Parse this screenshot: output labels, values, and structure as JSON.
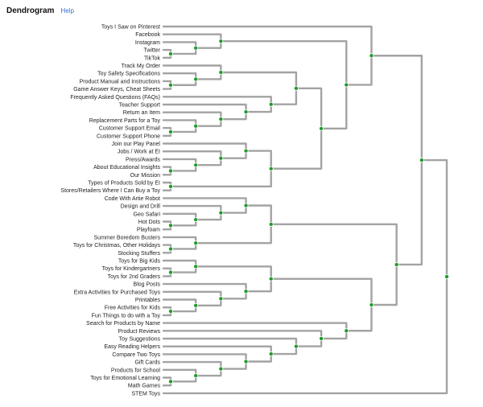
{
  "header": {
    "title": "Dendrogram",
    "help_label": "Help"
  },
  "colors": {
    "link": "#a3a3a3",
    "node": "#1f9b2a",
    "help_link": "#2f6fd6"
  },
  "chart_data": {
    "type": "dendrogram",
    "orientation": "leaves-left",
    "leaves": [
      "Toys I Saw on Pinterest",
      "Facebook",
      "Instagram",
      "Twitter",
      "TikTok",
      "Track My Order",
      "Toy Safety Specifications",
      "Product Manual and Instructions",
      "Game Answer Keys, Cheat Sheets",
      "Frequently Asked Questions (FAQs)",
      "Teacher Support",
      "Return an Item",
      "Replacement Parts for a Toy",
      "Customer Support Email",
      "Customer Support Phone",
      "Join our Play Panel",
      "Jobs / Work at EI",
      "Press/Awards",
      "About Educational Insights",
      "Our Mission",
      "Types of Products Sold by EI",
      "Stores/Retailers Where I Can Buy a Toy",
      "Code With Artie Robot",
      "Design and Drill",
      "Geo Safari",
      "Hot Dots",
      "Playfoam",
      "Summer Boredom Busters",
      "Toys for Christmas, Other Holidays",
      "Stocking Stuffers",
      "Toys for Big Kids",
      "Toys for Kindergartners",
      "Toys for 2nd Graders",
      "Blog Posts",
      "Extra Activities for Purchased Toys",
      "Printables",
      "Free Activities for Kids",
      "Fun Things to do with a Toy",
      "Search for Products by Name",
      "Product Reviews",
      "Toy Suggestions",
      "Easy Reading Helpers",
      "Compare Two Toys",
      "Gift Cards",
      "Products for School",
      "Toys for Emotional Learning",
      "Math Games",
      "STEM Toys"
    ],
    "tree": [
      [
        [
          0,
          [
            [
              1,
              [
                2,
                [
                  3,
                  4
                ]
              ]
            ],
            [
              [
                [
                  5,
                  [
                    6,
                    [
                      7,
                      8
                    ]
                  ]
                ],
                [
                  9,
                  [
                    10,
                    [
                      11,
                      [
                        12,
                        [
                          13,
                          14
                        ]
                      ]
                    ]
                  ]
                ]
              ],
              [
                [
                  15,
                  [
                    16,
                    [
                      17,
                      [
                        18,
                        19
                      ]
                    ]
                  ]
                ],
                [
                  20,
                  21
                ]
              ]
            ]
          ]
        ],
        [
          [
            [
              22,
              [
                23,
                [
                  24,
                  [
                    25,
                    26
                  ]
                ]
              ]
            ],
            [
              27,
              [
                28,
                29
              ]
            ]
          ],
          [
            [
              [
                30,
                [
                  31,
                  32
                ]
              ],
              [
                33,
                [
                  34,
                  [
                    35,
                    [
                      36,
                      37
                    ]
                  ]
                ]
              ]
            ],
            [
              38,
              [
                39,
                [
                  40,
                  [
                    41,
                    [
                      42,
                      [
                        43,
                        [
                          44,
                          [
                            45,
                            46
                          ]
                        ]
                      ]
                    ]
                  ]
                ]
              ]
            ]
          ]
        ]
      ],
      47
    ]
  }
}
